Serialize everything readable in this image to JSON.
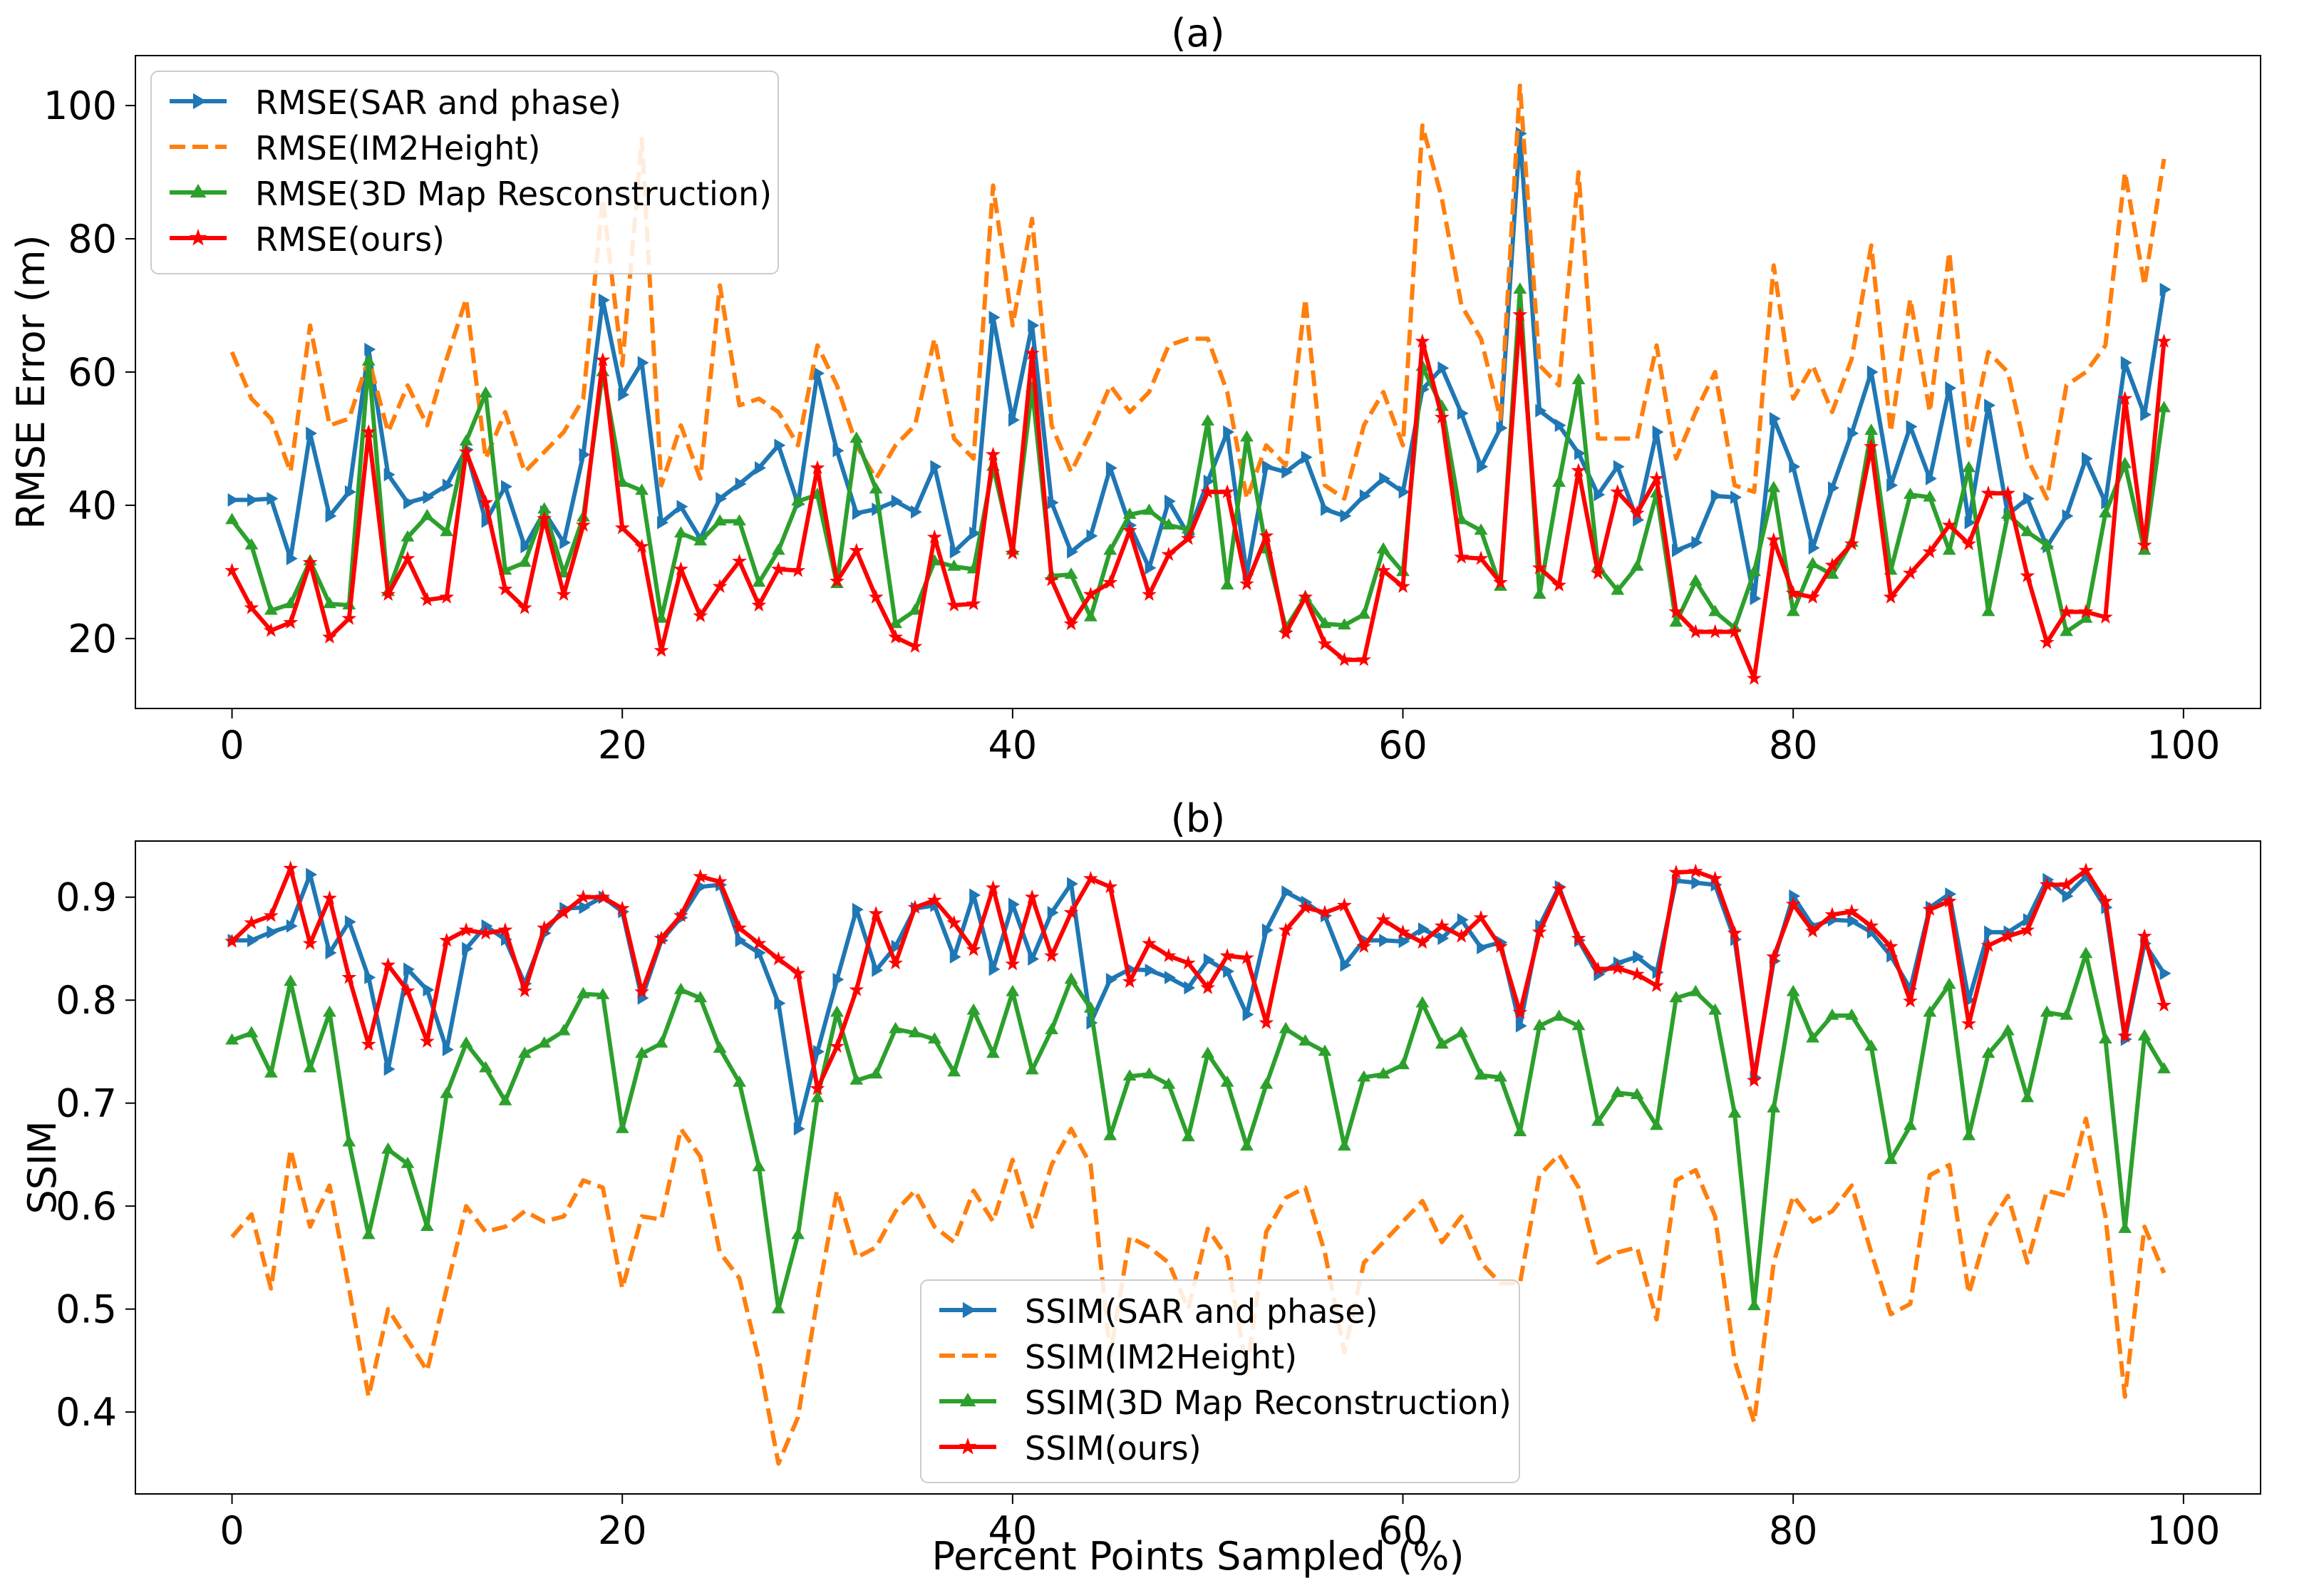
{
  "chart_data": [
    {
      "type": "line",
      "title": "(a)",
      "xlabel": "",
      "ylabel": "RMSE Error (m)",
      "xlim": [
        -4.95,
        103.95
      ],
      "ylim": [
        9.5,
        107.5
      ],
      "xticks": [
        0,
        20,
        40,
        60,
        80,
        100
      ],
      "yticks": [
        20,
        40,
        60,
        80,
        100
      ],
      "legend_position": "upper-left",
      "series": [
        {
          "name": "RMSE(SAR and phase)",
          "color": "#1f77b4",
          "style": "solid",
          "marker": "triangle-right",
          "values": [
            40.8,
            40.8,
            41.0,
            32.0,
            50.8,
            38.4,
            42.0,
            63.4,
            44.6,
            40.4,
            41.2,
            43.0,
            48.4,
            37.6,
            42.8,
            33.8,
            39.0,
            34.4,
            47.6,
            70.8,
            56.6,
            61.4,
            37.4,
            39.8,
            35.0,
            41.0,
            43.2,
            45.6,
            49.0,
            40.2,
            59.8,
            48.2,
            38.8,
            39.4,
            40.6,
            39.0,
            45.8,
            33.0,
            35.8,
            68.2,
            52.8,
            67.0,
            40.4,
            33.0,
            35.4,
            45.6,
            37.0,
            30.6,
            40.6,
            35.6,
            43.6,
            51.0,
            29.6,
            45.8,
            45.0,
            47.2,
            39.4,
            38.4,
            41.4,
            44.0,
            42.0,
            57.4,
            60.6,
            53.8,
            45.8,
            51.6,
            95.8,
            54.2,
            52.0,
            47.8,
            41.6,
            45.8,
            37.8,
            51.0,
            33.2,
            34.4,
            41.4,
            41.2,
            26.0,
            53.0,
            45.8,
            33.6,
            42.6,
            50.8,
            60.0,
            43.0,
            51.8,
            44.0,
            57.6,
            37.4,
            55.0,
            38.6,
            41.0,
            33.8,
            38.4,
            47.0,
            40.4,
            61.4,
            53.6,
            72.4
          ]
        },
        {
          "name": "RMSE(IM2Height)",
          "color": "#ff7f0e",
          "style": "dashed",
          "marker": "none",
          "values": [
            63.0,
            56.0,
            53.0,
            45.0,
            67.0,
            52.0,
            53.0,
            62.0,
            51.0,
            58.0,
            52.0,
            62.0,
            71.0,
            47.0,
            54.0,
            45.0,
            48.0,
            51.0,
            56.0,
            86.0,
            61.0,
            95.0,
            43.0,
            52.0,
            44.0,
            73.0,
            55.0,
            56.0,
            54.0,
            49.0,
            64.0,
            58.0,
            49.0,
            44.0,
            49.0,
            52.0,
            65.0,
            50.0,
            47.0,
            88.0,
            67.0,
            83.0,
            52.0,
            45.0,
            51.0,
            58.0,
            54.0,
            57.0,
            64.0,
            65.0,
            65.0,
            57.0,
            41.0,
            49.0,
            46.0,
            71.0,
            43.0,
            41.0,
            52.0,
            57.0,
            49.0,
            97.0,
            86.0,
            70.0,
            65.0,
            53.0,
            103.0,
            61.0,
            58.0,
            90.0,
            50.0,
            50.0,
            50.0,
            64.0,
            47.0,
            54.0,
            60.0,
            43.0,
            42.0,
            76.0,
            56.0,
            61.0,
            54.0,
            62.0,
            79.0,
            51.0,
            71.0,
            54.0,
            78.0,
            49.0,
            63.0,
            60.0,
            47.0,
            41.0,
            58.0,
            60.0,
            64.0,
            90.0,
            73.0,
            92.0
          ]
        },
        {
          "name": "RMSE(3D Map Resconstruction)",
          "color": "#2ca02c",
          "style": "solid",
          "marker": "triangle-up",
          "values": [
            37.8,
            34.0,
            24.2,
            25.2,
            31.6,
            25.2,
            25.0,
            61.6,
            27.0,
            35.2,
            38.4,
            36.0,
            49.6,
            56.8,
            30.2,
            31.4,
            39.4,
            29.8,
            38.2,
            60.0,
            43.4,
            42.2,
            23.0,
            35.8,
            34.6,
            37.6,
            37.6,
            28.4,
            33.2,
            40.6,
            41.6,
            28.2,
            50.0,
            42.4,
            22.2,
            24.2,
            31.6,
            30.8,
            30.4,
            45.8,
            33.2,
            57.6,
            29.4,
            29.6,
            23.2,
            33.2,
            38.6,
            39.2,
            37.0,
            36.4,
            52.6,
            28.0,
            50.2,
            33.4,
            21.6,
            26.2,
            22.2,
            22.0,
            23.6,
            33.4,
            30.0,
            60.8,
            54.8,
            37.8,
            36.2,
            27.8,
            72.4,
            26.6,
            43.4,
            58.8,
            30.8,
            27.2,
            30.8,
            41.8,
            22.4,
            28.6,
            24.0,
            21.6,
            30.0,
            42.6,
            24.0,
            31.2,
            29.6,
            34.4,
            51.2,
            30.2,
            41.6,
            41.2,
            33.2,
            45.6,
            24.0,
            38.6,
            36.0,
            34.0,
            21.0,
            23.0,
            38.8,
            46.2,
            33.2,
            54.6
          ]
        },
        {
          "name": "RMSE(ours)",
          "color": "#ff0000",
          "style": "solid",
          "marker": "star",
          "values": [
            30.2,
            24.6,
            21.2,
            22.4,
            31.4,
            20.2,
            23.0,
            51.0,
            26.6,
            32.0,
            25.8,
            26.2,
            48.0,
            40.4,
            27.4,
            24.6,
            38.0,
            26.6,
            37.0,
            61.8,
            36.6,
            33.8,
            18.2,
            30.4,
            23.4,
            27.8,
            31.6,
            25.0,
            30.4,
            30.2,
            45.6,
            28.6,
            33.2,
            26.2,
            20.2,
            18.8,
            35.2,
            25.0,
            25.2,
            47.6,
            32.8,
            62.8,
            28.8,
            22.2,
            26.6,
            28.4,
            36.2,
            26.6,
            32.6,
            35.0,
            42.0,
            42.0,
            28.2,
            35.4,
            20.8,
            26.2,
            19.2,
            16.8,
            16.8,
            30.2,
            27.8,
            64.6,
            53.2,
            32.2,
            32.0,
            28.4,
            68.6,
            30.6,
            28.0,
            45.2,
            29.8,
            42.0,
            38.8,
            44.0,
            24.0,
            21.0,
            21.0,
            21.0,
            14.0,
            34.8,
            26.8,
            26.2,
            31.0,
            34.2,
            48.8,
            26.2,
            29.8,
            33.0,
            37.0,
            34.2,
            41.8,
            41.8,
            29.4,
            19.4,
            24.0,
            24.0,
            23.2,
            56.0,
            34.0,
            64.6
          ]
        }
      ]
    },
    {
      "type": "line",
      "title": "(b)",
      "xlabel": "Percent Points Sampled (%)",
      "ylabel": "SSIM",
      "xlim": [
        -4.95,
        103.95
      ],
      "ylim": [
        0.3205,
        0.9545
      ],
      "xticks": [
        0,
        20,
        40,
        60,
        80,
        100
      ],
      "yticks": [
        0.4,
        0.5,
        0.6,
        0.7,
        0.8,
        0.9
      ],
      "legend_position": "lower-center",
      "series": [
        {
          "name": "SSIM(SAR and phase)",
          "color": "#1f77b4",
          "style": "solid",
          "marker": "triangle-right",
          "values": [
            0.858,
            0.858,
            0.866,
            0.872,
            0.922,
            0.846,
            0.876,
            0.822,
            0.733,
            0.83,
            0.81,
            0.752,
            0.85,
            0.872,
            0.859,
            0.816,
            0.865,
            0.889,
            0.89,
            0.9,
            0.886,
            0.802,
            0.858,
            0.88,
            0.91,
            0.912,
            0.858,
            0.846,
            0.797,
            0.675,
            0.75,
            0.82,
            0.888,
            0.829,
            0.852,
            0.889,
            0.892,
            0.842,
            0.902,
            0.83,
            0.893,
            0.84,
            0.885,
            0.913,
            0.778,
            0.82,
            0.83,
            0.829,
            0.822,
            0.812,
            0.839,
            0.828,
            0.786,
            0.868,
            0.905,
            0.895,
            0.882,
            0.834,
            0.858,
            0.858,
            0.857,
            0.869,
            0.86,
            0.878,
            0.851,
            0.856,
            0.775,
            0.872,
            0.91,
            0.858,
            0.825,
            0.836,
            0.842,
            0.827,
            0.916,
            0.914,
            0.912,
            0.859,
            0.725,
            0.838,
            0.901,
            0.872,
            0.878,
            0.877,
            0.866,
            0.843,
            0.811,
            0.89,
            0.903,
            0.8,
            0.866,
            0.866,
            0.878,
            0.917,
            0.901,
            0.92,
            0.89,
            0.762,
            0.855,
            0.826
          ]
        },
        {
          "name": "SSIM(IM2Height)",
          "color": "#ff7f0e",
          "style": "dashed",
          "marker": "none",
          "values": [
            0.57,
            0.592,
            0.52,
            0.655,
            0.58,
            0.62,
            0.52,
            0.415,
            0.5,
            0.47,
            0.44,
            0.52,
            0.6,
            0.575,
            0.58,
            0.595,
            0.585,
            0.59,
            0.625,
            0.618,
            0.52,
            0.59,
            0.587,
            0.675,
            0.648,
            0.555,
            0.53,
            0.45,
            0.35,
            0.395,
            0.51,
            0.615,
            0.55,
            0.56,
            0.595,
            0.615,
            0.58,
            0.565,
            0.615,
            0.585,
            0.645,
            0.58,
            0.64,
            0.675,
            0.64,
            0.455,
            0.57,
            0.56,
            0.545,
            0.5,
            0.578,
            0.55,
            0.44,
            0.575,
            0.608,
            0.618,
            0.555,
            0.458,
            0.545,
            0.565,
            0.585,
            0.605,
            0.565,
            0.59,
            0.545,
            0.525,
            0.525,
            0.63,
            0.65,
            0.618,
            0.545,
            0.555,
            0.56,
            0.49,
            0.625,
            0.635,
            0.59,
            0.45,
            0.39,
            0.545,
            0.61,
            0.585,
            0.595,
            0.62,
            0.555,
            0.495,
            0.505,
            0.63,
            0.64,
            0.515,
            0.58,
            0.61,
            0.545,
            0.615,
            0.61,
            0.685,
            0.59,
            0.415,
            0.58,
            0.535
          ]
        },
        {
          "name": "SSIM(3D Map Reconstruction)",
          "color": "#2ca02c",
          "style": "solid",
          "marker": "triangle-up",
          "values": [
            0.761,
            0.768,
            0.729,
            0.818,
            0.734,
            0.788,
            0.662,
            0.572,
            0.655,
            0.641,
            0.58,
            0.709,
            0.758,
            0.734,
            0.702,
            0.748,
            0.758,
            0.77,
            0.806,
            0.805,
            0.675,
            0.748,
            0.758,
            0.81,
            0.802,
            0.753,
            0.72,
            0.638,
            0.5,
            0.572,
            0.705,
            0.788,
            0.722,
            0.728,
            0.772,
            0.768,
            0.762,
            0.73,
            0.79,
            0.748,
            0.808,
            0.732,
            0.771,
            0.82,
            0.792,
            0.668,
            0.726,
            0.728,
            0.718,
            0.667,
            0.748,
            0.72,
            0.658,
            0.718,
            0.772,
            0.76,
            0.75,
            0.658,
            0.725,
            0.728,
            0.737,
            0.797,
            0.757,
            0.768,
            0.727,
            0.725,
            0.672,
            0.775,
            0.784,
            0.775,
            0.682,
            0.71,
            0.708,
            0.678,
            0.802,
            0.808,
            0.79,
            0.69,
            0.503,
            0.695,
            0.808,
            0.763,
            0.785,
            0.785,
            0.755,
            0.645,
            0.678,
            0.788,
            0.815,
            0.668,
            0.748,
            0.77,
            0.705,
            0.788,
            0.785,
            0.845,
            0.762,
            0.578,
            0.765,
            0.733
          ]
        },
        {
          "name": "SSIM(ours)",
          "color": "#ff0000",
          "style": "solid",
          "marker": "star",
          "values": [
            0.857,
            0.875,
            0.882,
            0.928,
            0.855,
            0.899,
            0.822,
            0.757,
            0.834,
            0.809,
            0.76,
            0.858,
            0.868,
            0.865,
            0.868,
            0.809,
            0.87,
            0.885,
            0.9,
            0.9,
            0.889,
            0.808,
            0.86,
            0.882,
            0.92,
            0.915,
            0.87,
            0.855,
            0.84,
            0.826,
            0.714,
            0.755,
            0.81,
            0.884,
            0.836,
            0.89,
            0.897,
            0.875,
            0.849,
            0.909,
            0.835,
            0.9,
            0.843,
            0.885,
            0.918,
            0.91,
            0.818,
            0.855,
            0.843,
            0.836,
            0.812,
            0.843,
            0.841,
            0.778,
            0.868,
            0.89,
            0.885,
            0.892,
            0.852,
            0.878,
            0.866,
            0.856,
            0.872,
            0.862,
            0.88,
            0.852,
            0.788,
            0.866,
            0.908,
            0.86,
            0.83,
            0.831,
            0.825,
            0.814,
            0.924,
            0.925,
            0.918,
            0.865,
            0.722,
            0.842,
            0.893,
            0.867,
            0.883,
            0.886,
            0.872,
            0.852,
            0.799,
            0.888,
            0.896,
            0.777,
            0.853,
            0.862,
            0.868,
            0.912,
            0.912,
            0.926,
            0.896,
            0.765,
            0.862,
            0.795
          ]
        }
      ]
    }
  ]
}
